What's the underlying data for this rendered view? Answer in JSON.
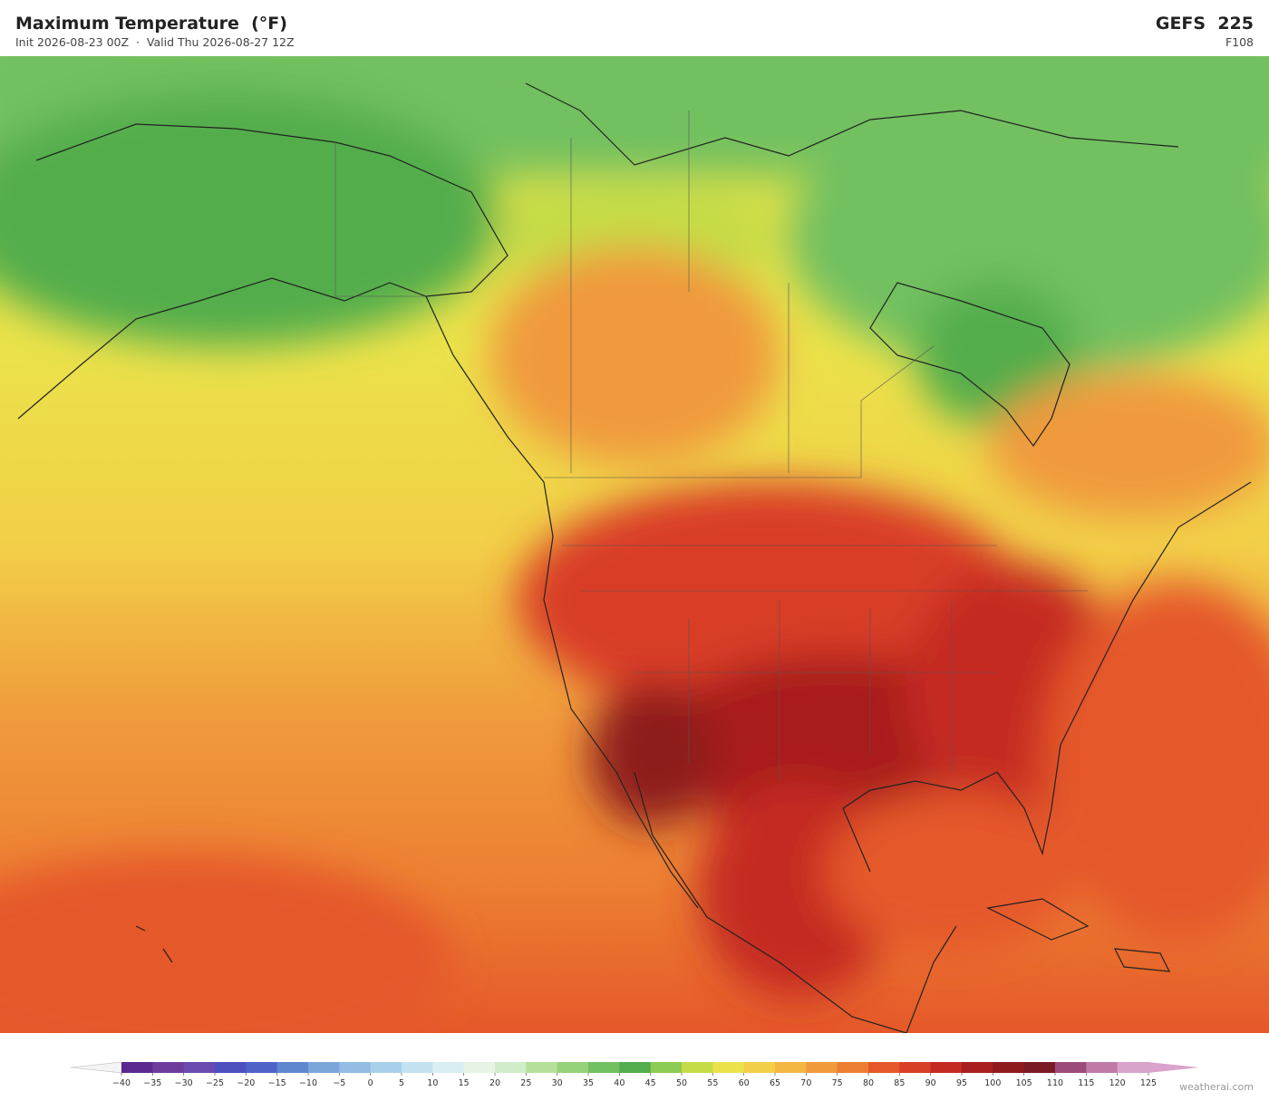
{
  "header": {
    "title": "Maximum Temperature  (°F)",
    "subtitle": "Init 2026-08-23 00Z  ·  Valid Thu 2026-08-27 12Z",
    "model": "GEFS  225",
    "forecast_hour": "F108"
  },
  "colorbar": {
    "range": [
      -40,
      125
    ],
    "ticks": [
      {
        "value": -40,
        "label": "−40"
      },
      {
        "value": -35,
        "label": "−35"
      },
      {
        "value": -30,
        "label": "−30"
      },
      {
        "value": -25,
        "label": "−25"
      },
      {
        "value": -20,
        "label": "−20"
      },
      {
        "value": -15,
        "label": "−15"
      },
      {
        "value": -10,
        "label": "−10"
      },
      {
        "value": -5,
        "label": "−5"
      },
      0,
      5,
      10,
      15,
      20,
      25,
      30,
      35,
      40,
      45,
      50,
      55,
      60,
      65,
      70,
      75,
      80,
      85,
      90,
      95,
      100,
      105,
      110,
      115,
      120,
      125
    ],
    "colors": [
      "#5a2a8f",
      "#6e3c9c",
      "#6a4aaf",
      "#4c4fc0",
      "#4e62c8",
      "#5f87d0",
      "#7aa6da",
      "#93bde3",
      "#a8d0ea",
      "#c3e2ef",
      "#d9eef0",
      "#e6f4e6",
      "#d1ecc8",
      "#b6e09a",
      "#96d27a",
      "#72c060",
      "#53ad4c",
      "#8ccc52",
      "#c5dc46",
      "#ebe24a",
      "#f2cf48",
      "#f3b742",
      "#f09a3c",
      "#ec7e32",
      "#e5582a",
      "#d93e26",
      "#c52a22",
      "#a91e1e",
      "#8e1a1e",
      "#7a1a24",
      "#9c4a7a",
      "#c07aa8",
      "#d9a3cc"
    ],
    "under_color": "#f4f4f4",
    "over_color": "#d9a3cc"
  },
  "watermark": "weatherai.com"
}
